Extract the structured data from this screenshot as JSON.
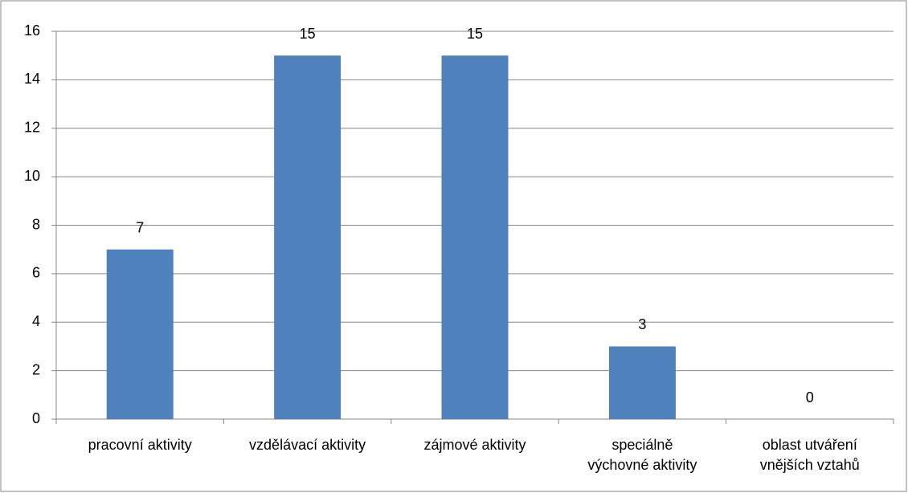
{
  "chart_data": {
    "type": "bar",
    "categories": [
      "pracovní aktivity",
      "vzdělávací aktivity",
      "zájmové aktivity",
      "speciálně\nvýchovné aktivity",
      "oblast utváření\nvnějších vztahů"
    ],
    "values": [
      7,
      15,
      15,
      3,
      0
    ],
    "color": "#4f81bd",
    "ylim": [
      0,
      16
    ],
    "yticks": [
      0,
      2,
      4,
      6,
      8,
      10,
      12,
      14,
      16
    ],
    "grid": true
  }
}
